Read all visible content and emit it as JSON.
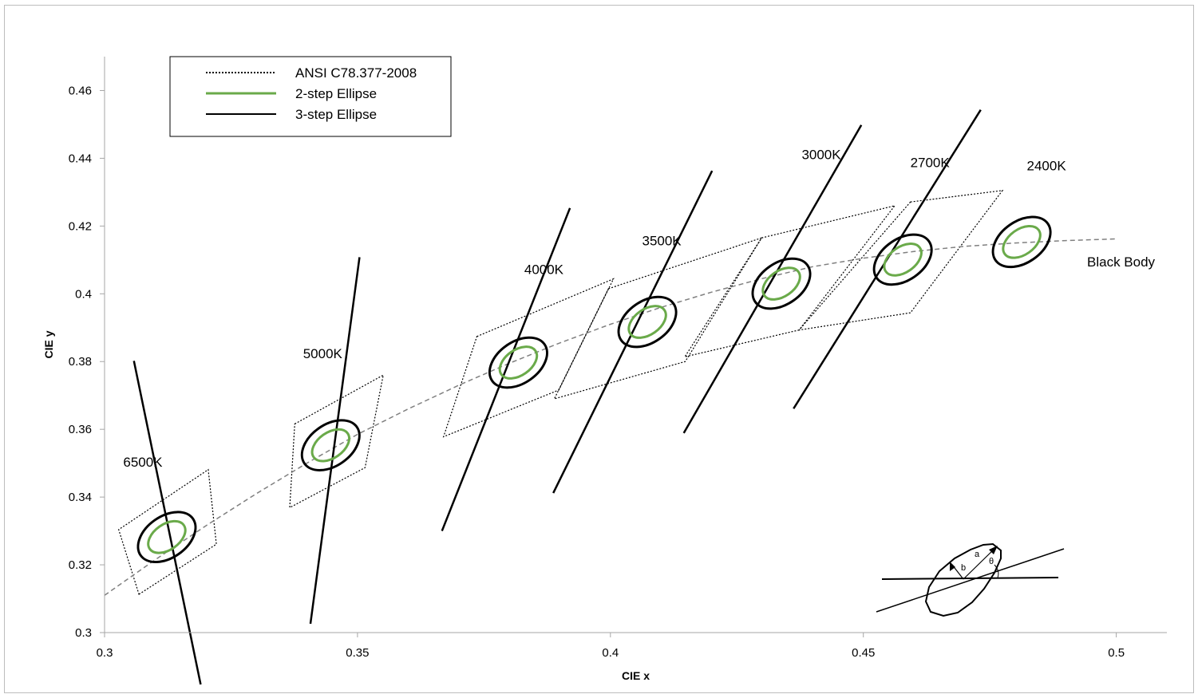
{
  "chart_data": {
    "type": "scatter",
    "xlabel": "CIE x",
    "ylabel": "CIE y",
    "xlim": [
      0.3,
      0.51
    ],
    "ylim": [
      0.3,
      0.47
    ],
    "x_ticks": [
      "0.3",
      "0.35",
      "0.4",
      "0.45",
      "0.5"
    ],
    "x_tick_values": [
      0.3,
      0.35,
      0.4,
      0.45,
      0.5
    ],
    "y_ticks": [
      "0.3",
      "0.32",
      "0.34",
      "0.36",
      "0.38",
      "0.4",
      "0.42",
      "0.44",
      "0.46"
    ],
    "y_tick_values": [
      0.3,
      0.32,
      0.34,
      0.36,
      0.38,
      0.4,
      0.42,
      0.44,
      0.46
    ],
    "grid": false,
    "legend_position": "top-left",
    "legend": [
      {
        "label": "ANSI C78.377-2008",
        "style": "dotted",
        "color": "#000000"
      },
      {
        "label": "2-step Ellipse",
        "style": "solid",
        "color": "#6aaa4a"
      },
      {
        "label": "3-step Ellipse",
        "style": "solid",
        "color": "#000000"
      }
    ],
    "colors": {
      "two_step": "#6aaa4a",
      "three_step": "#000000",
      "black_body": "#808080"
    },
    "black_body": {
      "label": "Black Body",
      "x": [
        0.3,
        0.31,
        0.32,
        0.33,
        0.34,
        0.35,
        0.36,
        0.37,
        0.38,
        0.39,
        0.4,
        0.41,
        0.42,
        0.43,
        0.44,
        0.45,
        0.46,
        0.47,
        0.48,
        0.49,
        0.5
      ],
      "y": [
        0.311,
        0.3215,
        0.3315,
        0.341,
        0.35,
        0.3585,
        0.366,
        0.373,
        0.3795,
        0.3855,
        0.391,
        0.396,
        0.4005,
        0.4045,
        0.408,
        0.4105,
        0.4125,
        0.414,
        0.415,
        0.4157,
        0.4162
      ]
    },
    "cct_points": [
      {
        "label": "6500K",
        "x": 0.3123,
        "y": 0.3282,
        "quad": [
          [
            0.3068,
            0.3113
          ],
          [
            0.3221,
            0.3261
          ],
          [
            0.3205,
            0.3481
          ],
          [
            0.3028,
            0.3304
          ]
        ],
        "isotherm": [
          [
            0.3058,
            0.3802
          ],
          [
            0.319,
            0.2847
          ]
        ]
      },
      {
        "label": "5000K",
        "x": 0.3447,
        "y": 0.3553,
        "quad": [
          [
            0.3376,
            0.3616
          ],
          [
            0.3551,
            0.376
          ],
          [
            0.3515,
            0.3487
          ],
          [
            0.3366,
            0.3369
          ]
        ],
        "isotherm": [
          [
            0.3504,
            0.4108
          ],
          [
            0.3407,
            0.3026
          ]
        ]
      },
      {
        "label": "4000K",
        "x": 0.3818,
        "y": 0.3797,
        "quad": [
          [
            0.3736,
            0.3874
          ],
          [
            0.4006,
            0.4044
          ],
          [
            0.3898,
            0.3716
          ],
          [
            0.367,
            0.3578
          ]
        ],
        "isotherm": [
          [
            0.392,
            0.4253
          ],
          [
            0.3667,
            0.33
          ]
        ]
      },
      {
        "label": "3500K",
        "x": 0.4073,
        "y": 0.3917,
        "quad": [
          [
            0.3996,
            0.4015
          ],
          [
            0.4299,
            0.4165
          ],
          [
            0.4148,
            0.38
          ],
          [
            0.3889,
            0.369
          ]
        ],
        "isotherm": [
          [
            0.4201,
            0.4363
          ],
          [
            0.3887,
            0.3412
          ]
        ]
      },
      {
        "label": "3000K",
        "x": 0.4338,
        "y": 0.403,
        "quad": [
          [
            0.4299,
            0.4165
          ],
          [
            0.4562,
            0.426
          ],
          [
            0.4373,
            0.3893
          ],
          [
            0.4147,
            0.3814
          ]
        ],
        "isotherm": [
          [
            0.4496,
            0.4498
          ],
          [
            0.4145,
            0.3589
          ]
        ]
      },
      {
        "label": "2700K",
        "x": 0.4578,
        "y": 0.4101,
        "quad": [
          [
            0.4593,
            0.4271
          ],
          [
            0.4775,
            0.4305
          ],
          [
            0.4593,
            0.3944
          ],
          [
            0.4373,
            0.3893
          ]
        ],
        "isotherm": [
          [
            0.4732,
            0.4543
          ],
          [
            0.4362,
            0.3661
          ]
        ]
      },
      {
        "label": "2400K",
        "x": 0.4813,
        "y": 0.4153,
        "quad": null,
        "isotherm": null
      }
    ],
    "inset_labels": {
      "a": "a",
      "b": "b",
      "theta": "θ"
    }
  }
}
